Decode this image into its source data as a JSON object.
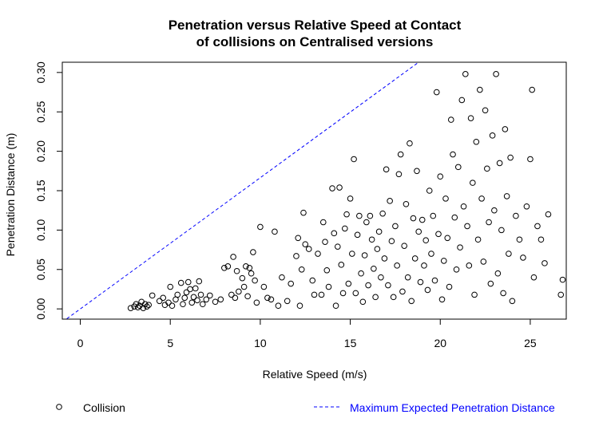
{
  "chart_data": {
    "type": "scatter",
    "title": [
      "Penetration versus Relative Speed at Contact",
      "of collisions on Centralised versions"
    ],
    "xlabel": "Relative Speed (m/s)",
    "ylabel": "Penetration Distance (m)",
    "xlim": [
      -1,
      27
    ],
    "ylim": [
      -0.013,
      0.313
    ],
    "xticks": [
      0,
      5,
      10,
      15,
      20,
      25
    ],
    "xtick_labels": [
      "0",
      "5",
      "10",
      "15",
      "20",
      "25"
    ],
    "yticks": [
      0.0,
      0.05,
      0.1,
      0.15,
      0.2,
      0.25,
      0.3
    ],
    "ytick_labels": [
      "0.00",
      "0.05",
      "0.10",
      "0.15",
      "0.20",
      "0.25",
      "0.30"
    ],
    "grid": false,
    "legend": [
      {
        "label": "Collision",
        "marker": "open-circle",
        "color": "#000000"
      },
      {
        "label": "Maximum Expected Penetration Distance",
        "marker": "dashed-line",
        "color": "#0000ff"
      }
    ],
    "series": [
      {
        "name": "Collision",
        "color": "#000000",
        "points": [
          [
            2.8,
            0.001
          ],
          [
            3.0,
            0.003
          ],
          [
            3.1,
            0.006
          ],
          [
            3.2,
            0.002
          ],
          [
            3.3,
            0.004
          ],
          [
            3.4,
            0.009
          ],
          [
            3.5,
            0.001
          ],
          [
            3.6,
            0.006
          ],
          [
            3.7,
            0.003
          ],
          [
            3.8,
            0.005
          ],
          [
            4.0,
            0.017
          ],
          [
            4.4,
            0.01
          ],
          [
            4.6,
            0.014
          ],
          [
            4.7,
            0.005
          ],
          [
            4.9,
            0.008
          ],
          [
            5.0,
            0.028
          ],
          [
            5.1,
            0.004
          ],
          [
            5.3,
            0.012
          ],
          [
            5.4,
            0.018
          ],
          [
            5.6,
            0.033
          ],
          [
            5.7,
            0.006
          ],
          [
            5.8,
            0.014
          ],
          [
            5.9,
            0.021
          ],
          [
            6.0,
            0.034
          ],
          [
            6.1,
            0.025
          ],
          [
            6.2,
            0.008
          ],
          [
            6.3,
            0.015
          ],
          [
            6.4,
            0.026
          ],
          [
            6.5,
            0.011
          ],
          [
            6.6,
            0.035
          ],
          [
            6.7,
            0.018
          ],
          [
            6.8,
            0.006
          ],
          [
            7.0,
            0.012
          ],
          [
            7.2,
            0.017
          ],
          [
            7.5,
            0.009
          ],
          [
            7.8,
            0.012
          ],
          [
            8.0,
            0.052
          ],
          [
            8.2,
            0.054
          ],
          [
            8.4,
            0.018
          ],
          [
            8.5,
            0.066
          ],
          [
            8.6,
            0.014
          ],
          [
            8.7,
            0.048
          ],
          [
            8.8,
            0.022
          ],
          [
            9.0,
            0.039
          ],
          [
            9.1,
            0.028
          ],
          [
            9.2,
            0.054
          ],
          [
            9.3,
            0.016
          ],
          [
            9.4,
            0.052
          ],
          [
            9.5,
            0.045
          ],
          [
            9.6,
            0.072
          ],
          [
            9.7,
            0.036
          ],
          [
            9.8,
            0.008
          ],
          [
            10.0,
            0.104
          ],
          [
            10.2,
            0.028
          ],
          [
            10.4,
            0.014
          ],
          [
            10.6,
            0.012
          ],
          [
            10.8,
            0.098
          ],
          [
            11.0,
            0.004
          ],
          [
            11.2,
            0.04
          ],
          [
            11.5,
            0.01
          ],
          [
            11.7,
            0.032
          ],
          [
            12.0,
            0.067
          ],
          [
            12.1,
            0.09
          ],
          [
            12.2,
            0.004
          ],
          [
            12.3,
            0.05
          ],
          [
            12.4,
            0.122
          ],
          [
            12.5,
            0.082
          ],
          [
            12.7,
            0.076
          ],
          [
            12.9,
            0.036
          ],
          [
            13.0,
            0.018
          ],
          [
            13.2,
            0.07
          ],
          [
            13.4,
            0.018
          ],
          [
            13.5,
            0.11
          ],
          [
            13.6,
            0.085
          ],
          [
            13.7,
            0.049
          ],
          [
            13.8,
            0.028
          ],
          [
            14.0,
            0.153
          ],
          [
            14.1,
            0.096
          ],
          [
            14.2,
            0.004
          ],
          [
            14.3,
            0.079
          ],
          [
            14.4,
            0.154
          ],
          [
            14.5,
            0.056
          ],
          [
            14.6,
            0.02
          ],
          [
            14.7,
            0.102
          ],
          [
            14.8,
            0.12
          ],
          [
            14.9,
            0.032
          ],
          [
            15.0,
            0.14
          ],
          [
            15.1,
            0.07
          ],
          [
            15.2,
            0.19
          ],
          [
            15.3,
            0.02
          ],
          [
            15.4,
            0.094
          ],
          [
            15.5,
            0.118
          ],
          [
            15.6,
            0.045
          ],
          [
            15.7,
            0.009
          ],
          [
            15.8,
            0.068
          ],
          [
            15.9,
            0.11
          ],
          [
            16.0,
            0.03
          ],
          [
            16.1,
            0.118
          ],
          [
            16.2,
            0.088
          ],
          [
            16.3,
            0.051
          ],
          [
            16.4,
            0.015
          ],
          [
            16.5,
            0.076
          ],
          [
            16.6,
            0.098
          ],
          [
            16.7,
            0.04
          ],
          [
            16.8,
            0.121
          ],
          [
            16.9,
            0.064
          ],
          [
            17.0,
            0.177
          ],
          [
            17.1,
            0.03
          ],
          [
            17.2,
            0.137
          ],
          [
            17.3,
            0.086
          ],
          [
            17.4,
            0.015
          ],
          [
            17.5,
            0.105
          ],
          [
            17.6,
            0.055
          ],
          [
            17.7,
            0.171
          ],
          [
            17.8,
            0.196
          ],
          [
            17.9,
            0.022
          ],
          [
            18.0,
            0.08
          ],
          [
            18.1,
            0.133
          ],
          [
            18.2,
            0.04
          ],
          [
            18.3,
            0.21
          ],
          [
            18.4,
            0.01
          ],
          [
            18.5,
            0.115
          ],
          [
            18.6,
            0.064
          ],
          [
            18.7,
            0.175
          ],
          [
            18.8,
            0.098
          ],
          [
            18.9,
            0.034
          ],
          [
            19.0,
            0.113
          ],
          [
            19.1,
            0.055
          ],
          [
            19.2,
            0.087
          ],
          [
            19.3,
            0.024
          ],
          [
            19.4,
            0.15
          ],
          [
            19.5,
            0.07
          ],
          [
            19.6,
            0.118
          ],
          [
            19.7,
            0.036
          ],
          [
            19.8,
            0.275
          ],
          [
            19.9,
            0.095
          ],
          [
            20.0,
            0.168
          ],
          [
            20.1,
            0.012
          ],
          [
            20.2,
            0.061
          ],
          [
            20.3,
            0.14
          ],
          [
            20.4,
            0.09
          ],
          [
            20.5,
            0.028
          ],
          [
            20.6,
            0.24
          ],
          [
            20.7,
            0.196
          ],
          [
            20.8,
            0.116
          ],
          [
            20.9,
            0.05
          ],
          [
            21.0,
            0.18
          ],
          [
            21.1,
            0.078
          ],
          [
            21.2,
            0.265
          ],
          [
            21.3,
            0.13
          ],
          [
            21.4,
            0.298
          ],
          [
            21.5,
            0.105
          ],
          [
            21.6,
            0.055
          ],
          [
            21.7,
            0.242
          ],
          [
            21.8,
            0.16
          ],
          [
            21.9,
            0.018
          ],
          [
            22.0,
            0.212
          ],
          [
            22.1,
            0.088
          ],
          [
            22.2,
            0.278
          ],
          [
            22.3,
            0.14
          ],
          [
            22.4,
            0.06
          ],
          [
            22.5,
            0.252
          ],
          [
            22.6,
            0.178
          ],
          [
            22.7,
            0.11
          ],
          [
            22.8,
            0.032
          ],
          [
            22.9,
            0.22
          ],
          [
            23.0,
            0.125
          ],
          [
            23.1,
            0.298
          ],
          [
            23.2,
            0.045
          ],
          [
            23.3,
            0.185
          ],
          [
            23.4,
            0.1
          ],
          [
            23.5,
            0.02
          ],
          [
            23.6,
            0.228
          ],
          [
            23.7,
            0.143
          ],
          [
            23.8,
            0.07
          ],
          [
            23.9,
            0.192
          ],
          [
            24.0,
            0.01
          ],
          [
            24.2,
            0.118
          ],
          [
            24.4,
            0.088
          ],
          [
            24.6,
            0.065
          ],
          [
            24.8,
            0.13
          ],
          [
            25.0,
            0.19
          ],
          [
            25.1,
            0.278
          ],
          [
            25.2,
            0.04
          ],
          [
            25.4,
            0.105
          ],
          [
            25.6,
            0.088
          ],
          [
            25.8,
            0.058
          ],
          [
            26.0,
            0.12
          ],
          [
            26.7,
            0.018
          ],
          [
            26.8,
            0.037
          ]
        ]
      },
      {
        "name": "Maximum Expected Penetration Distance",
        "color": "#0000ff",
        "style": "dashed",
        "line": [
          [
            -1,
            -0.0167
          ],
          [
            18.8,
            0.313
          ]
        ]
      }
    ]
  }
}
